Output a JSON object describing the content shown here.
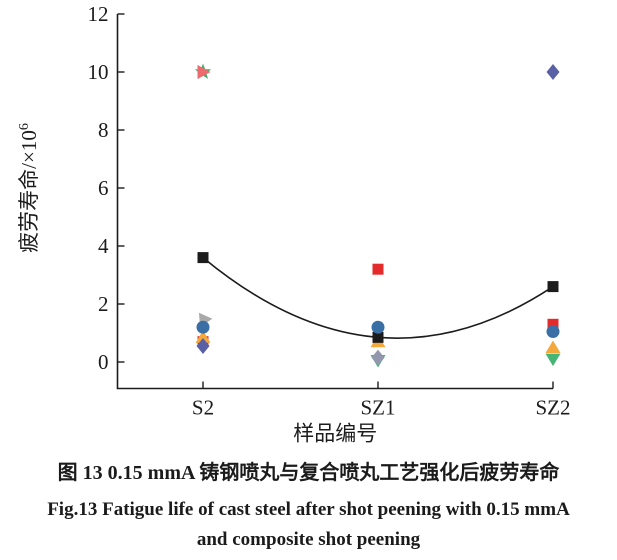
{
  "chart_data": {
    "type": "scatter",
    "title": "",
    "xlabel": "样品编号",
    "ylabel": "疲劳寿命/×10⁶",
    "categories": [
      "S2",
      "SZ1",
      "SZ2"
    ],
    "yticks": [
      0,
      2,
      4,
      6,
      8,
      10,
      12
    ],
    "ylim": [
      -0.9,
      12
    ],
    "grid": false,
    "legend": "none",
    "series": [
      {
        "name": "green-star",
        "marker": "star",
        "color": "#3fae6e",
        "values": [
          10.0,
          null,
          null
        ]
      },
      {
        "name": "salmon-right-triangle",
        "marker": "triangle-right",
        "color": "#ed6a6e",
        "values": [
          10.0,
          null,
          null
        ]
      },
      {
        "name": "gray-left-triangle",
        "marker": "triangle-up",
        "color": "#a9a9a9",
        "rotate": -35,
        "values": [
          1.5,
          null,
          null
        ]
      },
      {
        "name": "red-square",
        "marker": "square",
        "color": "#e32b2b",
        "values": [
          0.7,
          3.2,
          1.3
        ]
      },
      {
        "name": "orange-up-triangle",
        "marker": "triangle-up",
        "color": "#f3a93c",
        "values": [
          0.85,
          0.7,
          0.5
        ]
      },
      {
        "name": "black-square-mean",
        "marker": "square",
        "color": "#1c1c1c",
        "curve": true,
        "values": [
          3.6,
          0.85,
          2.6
        ]
      },
      {
        "name": "blue-circle",
        "marker": "circle",
        "color": "#3a6fa5",
        "values": [
          1.2,
          1.2,
          1.05
        ]
      },
      {
        "name": "green-down-triangle",
        "marker": "triangle-down",
        "color": "#47b575",
        "values": [
          null,
          0.05,
          0.1
        ]
      },
      {
        "name": "gray-diamond",
        "marker": "diamond",
        "color": "#9397ad",
        "values": [
          null,
          0.15,
          null
        ]
      },
      {
        "name": "purple-diamond",
        "marker": "diamond",
        "color": "#5a60a5",
        "values": [
          0.55,
          null,
          10.0
        ]
      }
    ],
    "fit_curve": {
      "through_series": "black-square-mean",
      "shape": "parabola",
      "color": "#1c1c1c"
    },
    "captions": {
      "cn": "图 13  0.15 mmA 铸钢喷丸与复合喷丸工艺强化后疲劳寿命",
      "en1": "Fig.13  Fatigue life of cast steel after shot peening with 0.15 mmA",
      "en2": "and composite shot peening"
    }
  }
}
